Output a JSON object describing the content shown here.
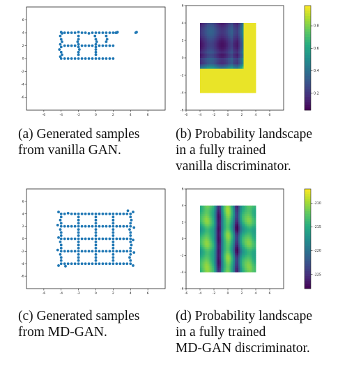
{
  "colors": {
    "scatter": "#1f77b4",
    "viridis": [
      "#440154",
      "#472c7a",
      "#3b518b",
      "#2c718e",
      "#21908d",
      "#27ad81",
      "#5cc863",
      "#aadc32",
      "#fde725"
    ]
  },
  "captions": {
    "a": [
      "(a) Generated samples",
      "from vanilla GAN."
    ],
    "b": [
      "(b) Probability landscape",
      "in a fully trained",
      "vanilla discriminator."
    ],
    "c": [
      "(c) Generated samples",
      "from MD-GAN."
    ],
    "d": [
      "(d) Probability landscape",
      "in a fully trained",
      "MD-GAN discriminator."
    ]
  },
  "chart_data": [
    {
      "id": "a",
      "type": "scatter",
      "title": "",
      "xlim": [
        -8,
        8
      ],
      "ylim": [
        -8,
        8
      ],
      "xticks": [
        "-6",
        "-4",
        "-2",
        "0",
        "2",
        "4",
        "6"
      ],
      "xtick_vals": [
        -6,
        -4,
        -2,
        0,
        2,
        4,
        6
      ],
      "yticks": [
        "6",
        "4",
        "2",
        "0",
        "-2",
        "-4",
        "-6"
      ],
      "ytick_vals": [
        6,
        4,
        2,
        0,
        -2,
        -4,
        -6
      ],
      "grid": false,
      "points": [
        [
          -4,
          4.1
        ],
        [
          -3.9,
          3.9
        ],
        [
          -3.6,
          4.0
        ],
        [
          -3.2,
          4.0
        ],
        [
          -2.8,
          4.0
        ],
        [
          -2.4,
          4.0
        ],
        [
          -2.0,
          4.1
        ],
        [
          -1.6,
          4.0
        ],
        [
          -1.2,
          4.0
        ],
        [
          -0.8,
          3.9
        ],
        [
          -0.4,
          4.0
        ],
        [
          0,
          4.0
        ],
        [
          0.4,
          4.0
        ],
        [
          0.8,
          4.0
        ],
        [
          1.2,
          4.0
        ],
        [
          1.6,
          4.0
        ],
        [
          2.0,
          4.0
        ],
        [
          2.4,
          4.0
        ],
        [
          -4.1,
          3.5
        ],
        [
          -4,
          3.0
        ],
        [
          -3.9,
          2.6
        ],
        [
          -4.1,
          2.2
        ],
        [
          -4,
          1.8
        ],
        [
          -4.2,
          1.4
        ],
        [
          -4,
          1.0
        ],
        [
          -3.9,
          0.6
        ],
        [
          -4.1,
          0.3
        ],
        [
          -4,
          0.0
        ],
        [
          -3.6,
          0.0
        ],
        [
          -3.2,
          0.0
        ],
        [
          -2.8,
          0.0
        ],
        [
          -2.4,
          0.0
        ],
        [
          -2.0,
          0.0
        ],
        [
          -1.6,
          0.0
        ],
        [
          -1.2,
          0.0
        ],
        [
          -0.8,
          0.0
        ],
        [
          -0.4,
          0.0
        ],
        [
          0,
          0.0
        ],
        [
          0.4,
          0.0
        ],
        [
          0.8,
          0.0
        ],
        [
          1.2,
          0.0
        ],
        [
          1.6,
          0.0
        ],
        [
          2.0,
          0.0
        ],
        [
          -2.0,
          3.5
        ],
        [
          -2.0,
          3.0
        ],
        [
          -2.1,
          2.6
        ],
        [
          -2.0,
          2.2
        ],
        [
          -2.0,
          1.8
        ],
        [
          -1.9,
          1.4
        ],
        [
          -2.0,
          1.0
        ],
        [
          -2.0,
          0.6
        ],
        [
          -0.1,
          3.5
        ],
        [
          0.0,
          3.0
        ],
        [
          0.1,
          2.6
        ],
        [
          0,
          2.2
        ],
        [
          0,
          1.8
        ],
        [
          0,
          1.4
        ],
        [
          0,
          1.0
        ],
        [
          0,
          0.6
        ],
        [
          1.2,
          3.5
        ],
        [
          1.3,
          3.0
        ],
        [
          1.2,
          2.6
        ],
        [
          -3.6,
          2.0
        ],
        [
          -3.2,
          2.0
        ],
        [
          -2.8,
          2.0
        ],
        [
          -2.4,
          2.0
        ],
        [
          -1.6,
          2.0
        ],
        [
          -1.2,
          2.0
        ],
        [
          -0.8,
          2.0
        ],
        [
          -0.4,
          2.0
        ],
        [
          0.4,
          2.0
        ],
        [
          0.8,
          2.0
        ],
        [
          1.2,
          2.0
        ],
        [
          1.6,
          2.0
        ],
        [
          2.0,
          2.0
        ],
        [
          2.3,
          4.0
        ],
        [
          2.5,
          4.1
        ],
        [
          4.6,
          4.0
        ],
        [
          4.7,
          4.1
        ]
      ]
    },
    {
      "id": "b",
      "type": "heatmap",
      "title": "",
      "xlim": [
        -6,
        8
      ],
      "ylim": [
        -6,
        6
      ],
      "xticks": [
        "-6",
        "-4",
        "-2",
        "0",
        "2",
        "4",
        "6"
      ],
      "xtick_vals": [
        -6,
        -4,
        -2,
        0,
        2,
        4,
        6
      ],
      "yticks": [
        "6",
        "4",
        "2",
        "0",
        "-2",
        "-4",
        "-6"
      ],
      "ytick_vals": [
        6,
        4,
        2,
        0,
        -2,
        -4,
        -6
      ],
      "extent": [
        -4,
        4,
        -4,
        4
      ],
      "colorbar": {
        "min": 0.05,
        "max": 0.98,
        "ticks": [
          "0.8",
          "0.6",
          "0.4",
          "0.2"
        ],
        "tick_vals": [
          0.8,
          0.6,
          0.4,
          0.2
        ]
      },
      "description_values": {
        "upper_left_region": "dark purple (approx. 0.05-0.3)",
        "bottom_strip_y_below_-1.2": "yellow (approx. 0.97)",
        "right_strip_x_above_2.3": "yellow (approx. 0.97)"
      }
    },
    {
      "id": "c",
      "type": "scatter",
      "title": "",
      "xlim": [
        -8,
        8
      ],
      "ylim": [
        -8,
        8
      ],
      "xticks": [
        "-6",
        "-4",
        "-2",
        "0",
        "2",
        "4",
        "6"
      ],
      "xtick_vals": [
        -6,
        -4,
        -2,
        0,
        2,
        4,
        6
      ],
      "yticks": [
        "6",
        "4",
        "2",
        "0",
        "-2",
        "-4",
        "-6"
      ],
      "ytick_vals": [
        6,
        4,
        2,
        0,
        -2,
        -4,
        -6
      ],
      "grid": false,
      "points": [
        [
          -4,
          4.0
        ],
        [
          -3.6,
          4.0
        ],
        [
          -3.2,
          4.1
        ],
        [
          -2.8,
          4.0
        ],
        [
          -2.4,
          4.0
        ],
        [
          -2,
          4.0
        ],
        [
          -1.6,
          4.0
        ],
        [
          -1.2,
          4.0
        ],
        [
          -0.8,
          4.0
        ],
        [
          -0.4,
          4.0
        ],
        [
          0,
          4.0
        ],
        [
          0.4,
          4.0
        ],
        [
          0.8,
          4.0
        ],
        [
          1.2,
          4.0
        ],
        [
          1.6,
          4.0
        ],
        [
          2,
          4.0
        ],
        [
          2.4,
          4.0
        ],
        [
          2.8,
          4.0
        ],
        [
          3.2,
          4.0
        ],
        [
          3.6,
          4.0
        ],
        [
          4,
          4.0
        ],
        [
          -4,
          -4.0
        ],
        [
          -3.6,
          -4.0
        ],
        [
          -3.2,
          -4.0
        ],
        [
          -2.8,
          -4.0
        ],
        [
          -2.4,
          -4.0
        ],
        [
          -2,
          -4.0
        ],
        [
          -1.6,
          -4.0
        ],
        [
          -1.2,
          -4.0
        ],
        [
          -0.8,
          -4.0
        ],
        [
          -0.4,
          -4.0
        ],
        [
          0,
          -4.0
        ],
        [
          0.4,
          -4.0
        ],
        [
          0.8,
          -4.0
        ],
        [
          1.2,
          -4.0
        ],
        [
          1.6,
          -4.0
        ],
        [
          2,
          -4.0
        ],
        [
          2.4,
          -4.0
        ],
        [
          2.8,
          -4.0
        ],
        [
          3.2,
          -4.0
        ],
        [
          3.6,
          -4.0
        ],
        [
          4,
          -4.0
        ],
        [
          -4,
          3.5
        ],
        [
          -4.1,
          3.0
        ],
        [
          -4,
          2.5
        ],
        [
          -4,
          2.0
        ],
        [
          -4.1,
          1.5
        ],
        [
          -4,
          1.0
        ],
        [
          -4,
          0.5
        ],
        [
          -4,
          0
        ],
        [
          -4.1,
          -0.5
        ],
        [
          -4,
          -1.0
        ],
        [
          -4,
          -1.5
        ],
        [
          -4,
          -2.0
        ],
        [
          -4.1,
          -2.5
        ],
        [
          -4,
          -3.0
        ],
        [
          -4,
          -3.5
        ],
        [
          4,
          3.5
        ],
        [
          4.1,
          3.0
        ],
        [
          4,
          2.5
        ],
        [
          4,
          2.0
        ],
        [
          3.9,
          1.5
        ],
        [
          4,
          1.0
        ],
        [
          4,
          0.5
        ],
        [
          4,
          0
        ],
        [
          4,
          -0.5
        ],
        [
          4.1,
          -1.0
        ],
        [
          4,
          -1.5
        ],
        [
          4,
          -2.0
        ],
        [
          4,
          -2.5
        ],
        [
          3.9,
          -3.0
        ],
        [
          4,
          -3.5
        ],
        [
          -2,
          3.5
        ],
        [
          -2,
          3.0
        ],
        [
          -2,
          2.5
        ],
        [
          -2,
          2.0
        ],
        [
          -2,
          1.5
        ],
        [
          -2,
          1.0
        ],
        [
          -2,
          0.5
        ],
        [
          -2,
          0
        ],
        [
          -2,
          -0.5
        ],
        [
          -2,
          -1.0
        ],
        [
          -2,
          -1.5
        ],
        [
          -2,
          -2.0
        ],
        [
          -2,
          -2.5
        ],
        [
          -2,
          -3.0
        ],
        [
          -2,
          -3.5
        ],
        [
          0,
          3.5
        ],
        [
          0,
          3.0
        ],
        [
          0,
          2.5
        ],
        [
          0,
          2.0
        ],
        [
          0,
          1.5
        ],
        [
          0,
          1.0
        ],
        [
          0,
          0.5
        ],
        [
          0,
          0
        ],
        [
          0,
          -0.5
        ],
        [
          0,
          -1.0
        ],
        [
          0,
          -1.5
        ],
        [
          0,
          -2.0
        ],
        [
          0,
          -2.5
        ],
        [
          0,
          -3.0
        ],
        [
          0,
          -3.5
        ],
        [
          2,
          3.5
        ],
        [
          2,
          3.0
        ],
        [
          2,
          2.5
        ],
        [
          2,
          2.0
        ],
        [
          2,
          1.5
        ],
        [
          2,
          1.0
        ],
        [
          2,
          0.5
        ],
        [
          2,
          0
        ],
        [
          2,
          -0.5
        ],
        [
          2,
          -1.0
        ],
        [
          2,
          -1.5
        ],
        [
          2,
          -2.0
        ],
        [
          2,
          -2.5
        ],
        [
          2,
          -3.0
        ],
        [
          2,
          -3.5
        ],
        [
          -3.6,
          2.0
        ],
        [
          -3.2,
          2.0
        ],
        [
          -2.8,
          2.0
        ],
        [
          -2.4,
          2.0
        ],
        [
          -1.6,
          2.0
        ],
        [
          -1.2,
          2.0
        ],
        [
          -0.8,
          2.0
        ],
        [
          -0.4,
          2.0
        ],
        [
          0.4,
          2.0
        ],
        [
          0.8,
          2.0
        ],
        [
          1.2,
          2.0
        ],
        [
          1.6,
          2.0
        ],
        [
          2.4,
          2.0
        ],
        [
          2.8,
          2.0
        ],
        [
          3.2,
          2.0
        ],
        [
          3.6,
          2.0
        ],
        [
          -3.6,
          0.0
        ],
        [
          -3.2,
          0.0
        ],
        [
          -2.8,
          0.0
        ],
        [
          -2.4,
          0.0
        ],
        [
          -1.6,
          0.0
        ],
        [
          -1.2,
          0.0
        ],
        [
          -0.8,
          0.0
        ],
        [
          -0.4,
          0.0
        ],
        [
          0.4,
          0.0
        ],
        [
          0.8,
          0.0
        ],
        [
          1.2,
          0.0
        ],
        [
          1.6,
          0.0
        ],
        [
          2.4,
          0.0
        ],
        [
          2.8,
          0.0
        ],
        [
          3.2,
          0.0
        ],
        [
          3.6,
          0.0
        ],
        [
          -3.6,
          -2.0
        ],
        [
          -3.2,
          -2.0
        ],
        [
          -2.8,
          -2.0
        ],
        [
          -2.4,
          -2.0
        ],
        [
          -1.6,
          -2.0
        ],
        [
          -1.2,
          -2.0
        ],
        [
          -0.8,
          -2.0
        ],
        [
          -0.4,
          -2.0
        ],
        [
          0.4,
          -2.0
        ],
        [
          0.8,
          -2.0
        ],
        [
          1.2,
          -2.0
        ],
        [
          1.6,
          -2.0
        ],
        [
          2.4,
          -2.0
        ],
        [
          2.8,
          -2.0
        ],
        [
          3.2,
          -2.0
        ],
        [
          3.6,
          -2.0
        ],
        [
          -4.3,
          4.3
        ],
        [
          4.3,
          4.3
        ],
        [
          -4.3,
          -4.3
        ],
        [
          4.3,
          -4.3
        ],
        [
          -4.4,
          2.2
        ],
        [
          -4.4,
          -1.8
        ],
        [
          4.4,
          -2.2
        ],
        [
          4.4,
          1.8
        ],
        [
          -4.3,
          0.2
        ],
        [
          4.3,
          -0.2
        ],
        [
          3.7,
          4.5
        ],
        [
          -3.5,
          -4.4
        ]
      ]
    },
    {
      "id": "d",
      "type": "heatmap",
      "title": "",
      "xlim": [
        -6,
        8
      ],
      "ylim": [
        -6,
        6
      ],
      "xticks": [
        "-6",
        "-4",
        "-2",
        "0",
        "2",
        "4",
        "6"
      ],
      "xtick_vals": [
        -6,
        -4,
        -2,
        0,
        2,
        4,
        6
      ],
      "yticks": [
        "6",
        "4",
        "2",
        "0",
        "-2",
        "-4",
        "-6"
      ],
      "ytick_vals": [
        6,
        4,
        2,
        0,
        -2,
        -4,
        -6
      ],
      "extent": [
        -4,
        4,
        -4,
        4
      ],
      "colorbar": {
        "min": -228,
        "max": -207,
        "ticks": [
          "-210",
          "-215",
          "-220",
          "-225"
        ],
        "tick_vals": [
          -210,
          -215,
          -220,
          -225
        ]
      },
      "description_values": {
        "dark_vertical_bands_at_x": [
          -1.3,
          1.3
        ],
        "bright_columns_at_x": [
          -3,
          0,
          3
        ]
      }
    }
  ]
}
